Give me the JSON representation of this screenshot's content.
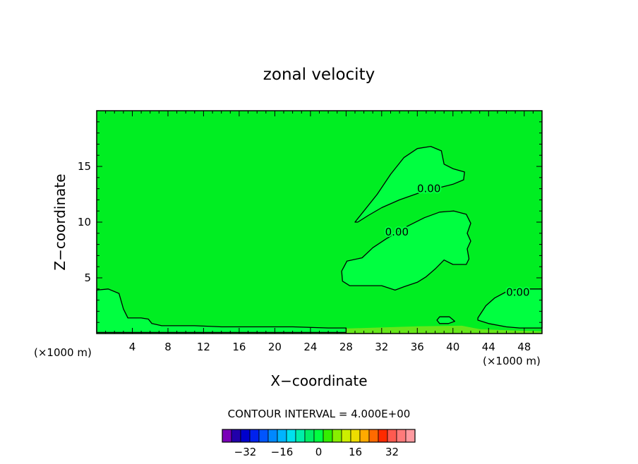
{
  "chart_data": {
    "type": "contour",
    "title": "zonal velocity",
    "xlabel": "X−coordinate",
    "ylabel": "Z−coordinate",
    "x_unit_left": "(×1000 m)",
    "x_unit_right": "(×1000 m)",
    "xlim": [
      0,
      50
    ],
    "ylim": [
      0,
      20
    ],
    "x_ticks": [
      4,
      8,
      12,
      16,
      20,
      24,
      28,
      32,
      36,
      40,
      44,
      48
    ],
    "y_ticks": [
      5,
      10,
      15
    ],
    "background_color": "#00ee22",
    "region_color": "#00ff40",
    "surface_band_color": "#66e61a",
    "contour_labels": [
      "0.00",
      "0.00",
      "0.00"
    ],
    "contour_interval_text": "CONTOUR INTERVAL = 4.000E+00",
    "regions": [
      {
        "label": "0.00",
        "label_at": [
          37.3,
          13.0
        ],
        "points": [
          [
            29,
            10
          ],
          [
            30,
            11
          ],
          [
            31.5,
            12.5
          ],
          [
            33,
            14.3
          ],
          [
            34.5,
            15.8
          ],
          [
            36,
            16.6
          ],
          [
            37.5,
            16.8
          ],
          [
            38.7,
            16.4
          ],
          [
            39,
            15.2
          ],
          [
            40,
            14.8
          ],
          [
            41.3,
            14.5
          ],
          [
            41.2,
            13.8
          ],
          [
            40,
            13.4
          ],
          [
            38.5,
            13.1
          ],
          [
            36.5,
            12.7
          ],
          [
            34,
            12.0
          ],
          [
            32,
            11.3
          ],
          [
            30.5,
            10.6
          ],
          [
            29.3,
            10.0
          ]
        ]
      },
      {
        "label": "0.00",
        "label_at": [
          33.7,
          9.1
        ],
        "points": [
          [
            29.8,
            6.8
          ],
          [
            31,
            7.7
          ],
          [
            32.5,
            8.5
          ],
          [
            34.8,
            9.6
          ],
          [
            36.8,
            10.4
          ],
          [
            38.5,
            10.9
          ],
          [
            40.1,
            11.0
          ],
          [
            41.5,
            10.7
          ],
          [
            42,
            9.9
          ],
          [
            41.6,
            9.0
          ],
          [
            42,
            8.3
          ],
          [
            41.6,
            7.6
          ],
          [
            41.8,
            6.7
          ],
          [
            41.5,
            6.2
          ],
          [
            40,
            6.2
          ],
          [
            39,
            6.6
          ],
          [
            38,
            5.8
          ],
          [
            37,
            5.1
          ],
          [
            36,
            4.6
          ],
          [
            34.5,
            4.2
          ],
          [
            33.5,
            3.9
          ],
          [
            32,
            4.3
          ],
          [
            30.2,
            4.3
          ],
          [
            28.4,
            4.3
          ],
          [
            27.6,
            4.7
          ],
          [
            27.5,
            5.6
          ],
          [
            28.1,
            6.5
          ],
          [
            29.8,
            6.8
          ]
        ]
      },
      {
        "label": "0.00",
        "label_at": [
          47.3,
          3.7
        ],
        "points": [
          [
            42.8,
            1.4
          ],
          [
            43.7,
            2.5
          ],
          [
            44.7,
            3.2
          ],
          [
            46.1,
            3.8
          ],
          [
            47.4,
            4.0
          ],
          [
            50,
            4.0
          ],
          [
            50,
            0.5
          ],
          [
            47.5,
            0.5
          ],
          [
            46,
            0.6
          ],
          [
            44,
            0.9
          ],
          [
            42.8,
            1.2
          ]
        ]
      },
      {
        "label": "",
        "label_at": null,
        "points": [
          [
            0,
            3.9
          ],
          [
            1.3,
            4.0
          ],
          [
            2.5,
            3.6
          ],
          [
            3,
            2.2
          ],
          [
            3.5,
            1.4
          ],
          [
            5,
            1.4
          ],
          [
            5.8,
            1.3
          ],
          [
            6.2,
            0.9
          ],
          [
            7.3,
            0.7
          ],
          [
            11,
            0.7
          ],
          [
            14,
            0.6
          ],
          [
            18,
            0.6
          ],
          [
            22,
            0.6
          ],
          [
            26,
            0.5
          ],
          [
            28,
            0.5
          ],
          [
            28,
            0.1
          ],
          [
            0,
            0.1
          ]
        ]
      },
      {
        "label": "",
        "label_at": null,
        "points": [
          [
            38.5,
            1.5
          ],
          [
            39.6,
            1.5
          ],
          [
            40.2,
            1.1
          ],
          [
            39.5,
            0.9
          ],
          [
            38.5,
            0.9
          ],
          [
            38.2,
            1.2
          ]
        ]
      }
    ],
    "colorbar": {
      "colors": [
        "#7a00b8",
        "#2200aa",
        "#0000cc",
        "#0022ee",
        "#0055ff",
        "#0088ff",
        "#00b4ff",
        "#00e0ee",
        "#00eeaa",
        "#00ee66",
        "#00ff40",
        "#33ee00",
        "#88ee00",
        "#ccee00",
        "#eedd00",
        "#ffaa00",
        "#ff6a00",
        "#ff2a00",
        "#ff5a50",
        "#ff7a7a",
        "#ff9aa0"
      ],
      "tick_labels": [
        {
          "text": "−32",
          "value": -32
        },
        {
          "text": "−16",
          "value": -16
        },
        {
          "text": "0",
          "value": 0
        },
        {
          "text": "16",
          "value": 16
        },
        {
          "text": "32",
          "value": 32
        }
      ],
      "vmin": -42,
      "vmax": 42
    }
  }
}
